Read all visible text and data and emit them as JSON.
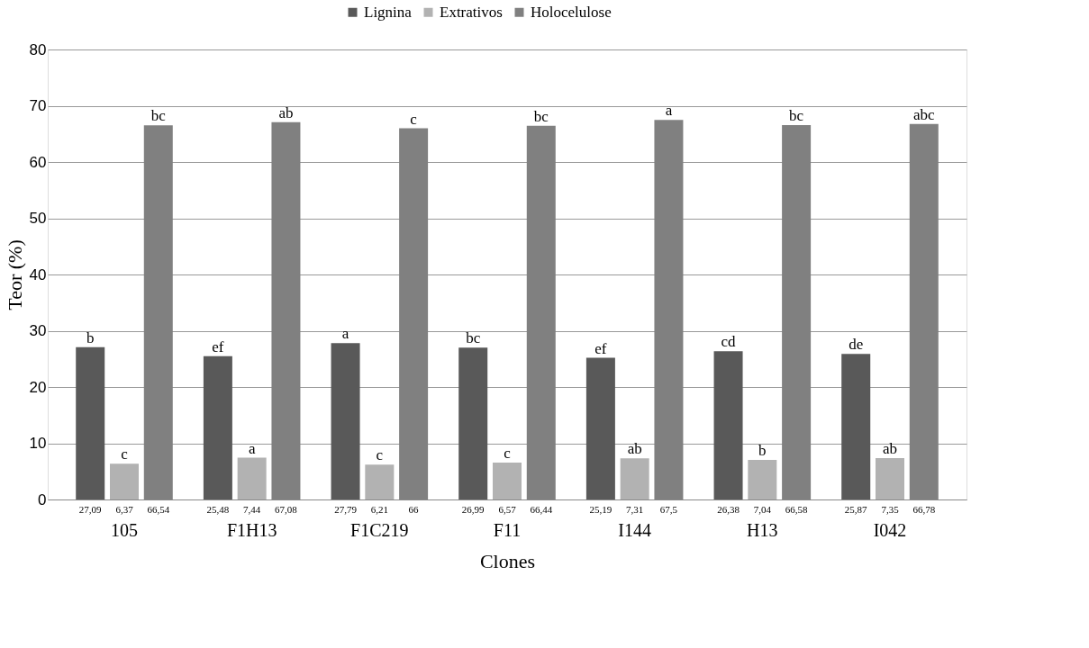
{
  "chart_data": {
    "type": "bar",
    "xlabel": "Clones",
    "ylabel": "Teor (%)",
    "categories": [
      "105",
      "F1H13",
      "F1C219",
      "F11",
      "I144",
      "H13",
      "I042"
    ],
    "series": [
      {
        "name": "Lignina",
        "color": "#595959",
        "values": [
          27.09,
          25.48,
          27.79,
          26.99,
          25.19,
          26.38,
          25.87
        ],
        "value_labels": [
          "27,09",
          "25,48",
          "27,79",
          "26,99",
          "25,19",
          "26,38",
          "25,87"
        ]
      },
      {
        "name": "Extrativos",
        "color": "#b2b2b2",
        "values": [
          6.37,
          7.44,
          6.21,
          6.57,
          7.31,
          7.04,
          7.35
        ],
        "value_labels": [
          "6,37",
          "7,44",
          "6,21",
          "6,57",
          "7,31",
          "7,04",
          "7,35"
        ]
      },
      {
        "name": "Holocelulose",
        "color": "#808080",
        "values": [
          66.54,
          67.08,
          66,
          66.44,
          67.5,
          66.58,
          66.78
        ],
        "value_labels": [
          "66,54",
          "67,08",
          "66",
          "66,44",
          "67,5",
          "66,58",
          "66,78"
        ]
      }
    ],
    "annotations": [
      "b",
      "c",
      "bc",
      "ef",
      "a",
      "ab",
      "a",
      "c",
      "c",
      "bc",
      "c",
      "bc",
      "ef",
      "ab",
      "a",
      "cd",
      "b",
      "bc",
      "de",
      "ab",
      "abc"
    ],
    "ylim": [
      0,
      80
    ],
    "yticks": [
      0,
      10,
      20,
      30,
      40,
      50,
      60,
      70,
      80
    ],
    "grid": "y",
    "legend": "top"
  }
}
